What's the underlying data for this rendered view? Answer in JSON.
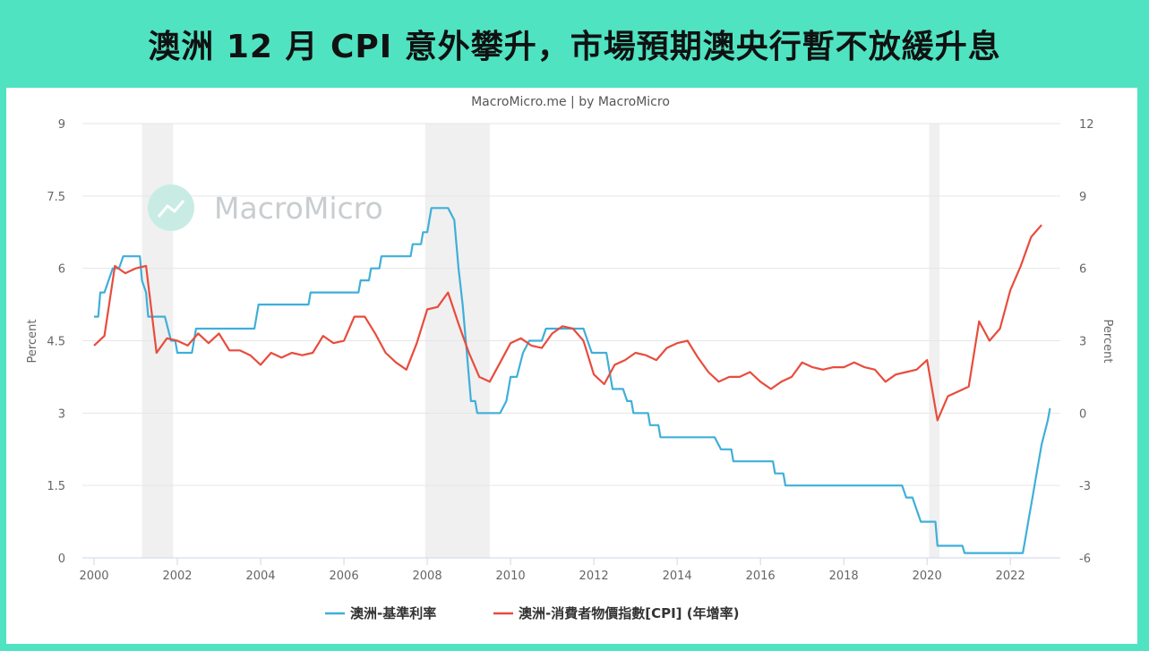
{
  "banner": {
    "title": "澳洲 12 月 CPI 意外攀升，市場預期澳央行暫不放緩升息"
  },
  "chart_data": {
    "type": "line",
    "subtitle": "MacroMicro.me | by MacroMicro",
    "watermark": "MacroMicro",
    "left_axis": {
      "label": "Percent",
      "range": [
        0,
        9
      ],
      "ticks": [
        "0",
        "1.5",
        "3",
        "4.5",
        "6",
        "7.5",
        "9"
      ]
    },
    "right_axis": {
      "label": "Percent",
      "range": [
        -6,
        12
      ],
      "ticks": [
        "-6",
        "-3",
        "0",
        "3",
        "6",
        "9",
        "12"
      ]
    },
    "x_axis": {
      "range": [
        2000,
        2023.2
      ],
      "ticks": [
        "2000",
        "2002",
        "2004",
        "2006",
        "2008",
        "2010",
        "2012",
        "2014",
        "2016",
        "2018",
        "2020",
        "2022"
      ]
    },
    "recessions": [
      [
        2001.15,
        2001.9
      ],
      [
        2007.95,
        2009.5
      ],
      [
        2020.05,
        2020.3
      ]
    ],
    "grid": true,
    "legend_position": "bottom-center",
    "series": [
      {
        "name": "澳洲-基準利率",
        "color": "#3fafd9",
        "axis": "left",
        "points": [
          [
            2000.0,
            5.0
          ],
          [
            2000.1,
            5.0
          ],
          [
            2000.15,
            5.5
          ],
          [
            2000.25,
            5.5
          ],
          [
            2000.45,
            6.0
          ],
          [
            2000.6,
            6.0
          ],
          [
            2000.7,
            6.25
          ],
          [
            2001.1,
            6.25
          ],
          [
            2001.15,
            5.75
          ],
          [
            2001.25,
            5.5
          ],
          [
            2001.3,
            5.0
          ],
          [
            2001.7,
            5.0
          ],
          [
            2001.85,
            4.5
          ],
          [
            2001.95,
            4.5
          ],
          [
            2002.0,
            4.25
          ],
          [
            2002.35,
            4.25
          ],
          [
            2002.45,
            4.75
          ],
          [
            2003.85,
            4.75
          ],
          [
            2003.95,
            5.25
          ],
          [
            2005.15,
            5.25
          ],
          [
            2005.2,
            5.5
          ],
          [
            2006.35,
            5.5
          ],
          [
            2006.4,
            5.75
          ],
          [
            2006.6,
            5.75
          ],
          [
            2006.65,
            6.0
          ],
          [
            2006.85,
            6.0
          ],
          [
            2006.9,
            6.25
          ],
          [
            2007.6,
            6.25
          ],
          [
            2007.65,
            6.5
          ],
          [
            2007.85,
            6.5
          ],
          [
            2007.9,
            6.75
          ],
          [
            2008.0,
            6.75
          ],
          [
            2008.1,
            7.25
          ],
          [
            2008.5,
            7.25
          ],
          [
            2008.65,
            7.0
          ],
          [
            2008.75,
            6.0
          ],
          [
            2008.85,
            5.25
          ],
          [
            2008.95,
            4.25
          ],
          [
            2009.05,
            3.25
          ],
          [
            2009.15,
            3.25
          ],
          [
            2009.2,
            3.0
          ],
          [
            2009.75,
            3.0
          ],
          [
            2009.9,
            3.25
          ],
          [
            2009.95,
            3.5
          ],
          [
            2010.0,
            3.75
          ],
          [
            2010.15,
            3.75
          ],
          [
            2010.3,
            4.25
          ],
          [
            2010.45,
            4.5
          ],
          [
            2010.75,
            4.5
          ],
          [
            2010.85,
            4.75
          ],
          [
            2011.75,
            4.75
          ],
          [
            2011.85,
            4.5
          ],
          [
            2011.95,
            4.25
          ],
          [
            2012.3,
            4.25
          ],
          [
            2012.4,
            3.75
          ],
          [
            2012.45,
            3.5
          ],
          [
            2012.7,
            3.5
          ],
          [
            2012.8,
            3.25
          ],
          [
            2012.9,
            3.25
          ],
          [
            2012.95,
            3.0
          ],
          [
            2013.3,
            3.0
          ],
          [
            2013.35,
            2.75
          ],
          [
            2013.55,
            2.75
          ],
          [
            2013.6,
            2.5
          ],
          [
            2014.9,
            2.5
          ],
          [
            2015.05,
            2.25
          ],
          [
            2015.3,
            2.25
          ],
          [
            2015.35,
            2.0
          ],
          [
            2016.3,
            2.0
          ],
          [
            2016.35,
            1.75
          ],
          [
            2016.55,
            1.75
          ],
          [
            2016.6,
            1.5
          ],
          [
            2019.4,
            1.5
          ],
          [
            2019.5,
            1.25
          ],
          [
            2019.65,
            1.25
          ],
          [
            2019.75,
            1.0
          ],
          [
            2019.85,
            0.75
          ],
          [
            2020.2,
            0.75
          ],
          [
            2020.25,
            0.25
          ],
          [
            2020.85,
            0.25
          ],
          [
            2020.9,
            0.1
          ],
          [
            2022.3,
            0.1
          ],
          [
            2022.35,
            0.35
          ],
          [
            2022.45,
            0.85
          ],
          [
            2022.55,
            1.35
          ],
          [
            2022.65,
            1.85
          ],
          [
            2022.75,
            2.35
          ],
          [
            2022.9,
            2.85
          ],
          [
            2022.95,
            3.1
          ]
        ]
      },
      {
        "name": "澳洲-消費者物價指數[CPI] (年增率)",
        "color": "#e84c3d",
        "axis": "right",
        "points": [
          [
            2000.0,
            2.8
          ],
          [
            2000.25,
            3.2
          ],
          [
            2000.5,
            6.1
          ],
          [
            2000.75,
            5.8
          ],
          [
            2001.0,
            6.0
          ],
          [
            2001.25,
            6.1
          ],
          [
            2001.5,
            2.5
          ],
          [
            2001.75,
            3.1
          ],
          [
            2002.0,
            3.0
          ],
          [
            2002.25,
            2.8
          ],
          [
            2002.5,
            3.3
          ],
          [
            2002.75,
            2.9
          ],
          [
            2003.0,
            3.3
          ],
          [
            2003.25,
            2.6
          ],
          [
            2003.5,
            2.6
          ],
          [
            2003.75,
            2.4
          ],
          [
            2004.0,
            2.0
          ],
          [
            2004.25,
            2.5
          ],
          [
            2004.5,
            2.3
          ],
          [
            2004.75,
            2.5
          ],
          [
            2005.0,
            2.4
          ],
          [
            2005.25,
            2.5
          ],
          [
            2005.5,
            3.2
          ],
          [
            2005.75,
            2.9
          ],
          [
            2006.0,
            3.0
          ],
          [
            2006.25,
            4.0
          ],
          [
            2006.5,
            4.0
          ],
          [
            2006.75,
            3.3
          ],
          [
            2007.0,
            2.5
          ],
          [
            2007.25,
            2.1
          ],
          [
            2007.5,
            1.8
          ],
          [
            2007.75,
            2.9
          ],
          [
            2008.0,
            4.3
          ],
          [
            2008.25,
            4.4
          ],
          [
            2008.5,
            5.0
          ],
          [
            2008.75,
            3.7
          ],
          [
            2009.0,
            2.5
          ],
          [
            2009.25,
            1.5
          ],
          [
            2009.5,
            1.3
          ],
          [
            2009.75,
            2.1
          ],
          [
            2010.0,
            2.9
          ],
          [
            2010.25,
            3.1
          ],
          [
            2010.5,
            2.8
          ],
          [
            2010.75,
            2.7
          ],
          [
            2011.0,
            3.3
          ],
          [
            2011.25,
            3.6
          ],
          [
            2011.5,
            3.5
          ],
          [
            2011.75,
            3.0
          ],
          [
            2012.0,
            1.6
          ],
          [
            2012.25,
            1.2
          ],
          [
            2012.5,
            2.0
          ],
          [
            2012.75,
            2.2
          ],
          [
            2013.0,
            2.5
          ],
          [
            2013.25,
            2.4
          ],
          [
            2013.5,
            2.2
          ],
          [
            2013.75,
            2.7
          ],
          [
            2014.0,
            2.9
          ],
          [
            2014.25,
            3.0
          ],
          [
            2014.5,
            2.3
          ],
          [
            2014.75,
            1.7
          ],
          [
            2015.0,
            1.3
          ],
          [
            2015.25,
            1.5
          ],
          [
            2015.5,
            1.5
          ],
          [
            2015.75,
            1.7
          ],
          [
            2016.0,
            1.3
          ],
          [
            2016.25,
            1.0
          ],
          [
            2016.5,
            1.3
          ],
          [
            2016.75,
            1.5
          ],
          [
            2017.0,
            2.1
          ],
          [
            2017.25,
            1.9
          ],
          [
            2017.5,
            1.8
          ],
          [
            2017.75,
            1.9
          ],
          [
            2018.0,
            1.9
          ],
          [
            2018.25,
            2.1
          ],
          [
            2018.5,
            1.9
          ],
          [
            2018.75,
            1.8
          ],
          [
            2019.0,
            1.3
          ],
          [
            2019.25,
            1.6
          ],
          [
            2019.5,
            1.7
          ],
          [
            2019.75,
            1.8
          ],
          [
            2020.0,
            2.2
          ],
          [
            2020.25,
            -0.3
          ],
          [
            2020.5,
            0.7
          ],
          [
            2020.75,
            0.9
          ],
          [
            2021.0,
            1.1
          ],
          [
            2021.25,
            3.8
          ],
          [
            2021.5,
            3.0
          ],
          [
            2021.75,
            3.5
          ],
          [
            2022.0,
            5.1
          ],
          [
            2022.25,
            6.1
          ],
          [
            2022.5,
            7.3
          ],
          [
            2022.75,
            7.8
          ]
        ]
      }
    ]
  }
}
